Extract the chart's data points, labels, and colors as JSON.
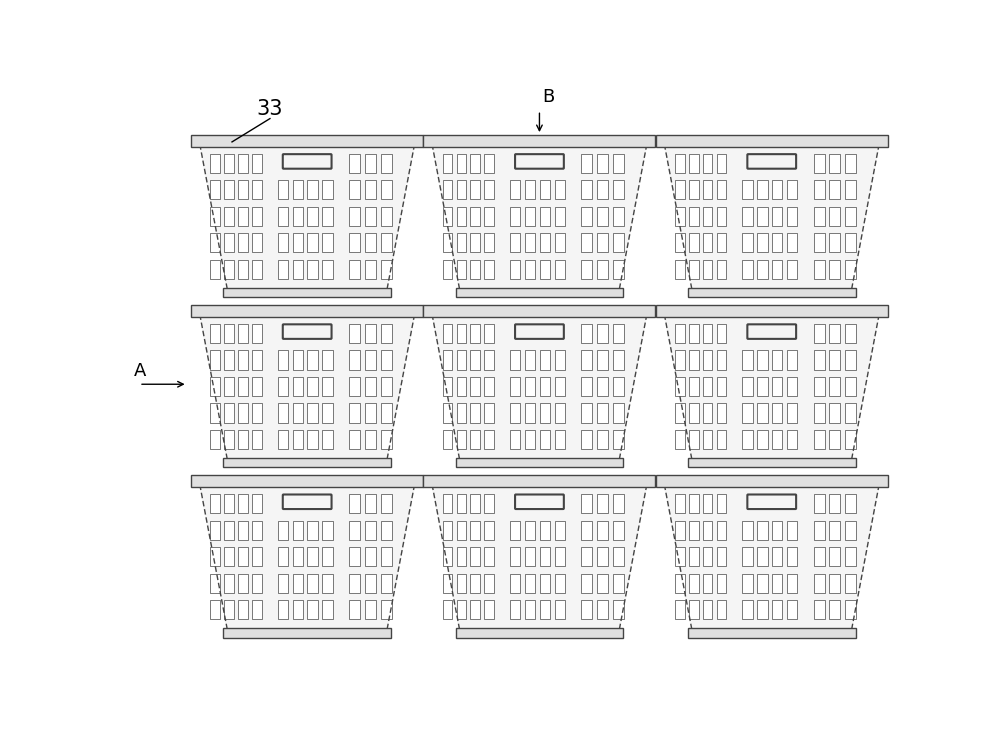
{
  "background_color": "#ffffff",
  "line_color": "#444444",
  "label_33": "33",
  "label_A": "A",
  "label_B": "B",
  "fig_width": 10.0,
  "fig_height": 7.38,
  "basket_face_color": "#f5f5f5",
  "rim_face_color": "#e0e0e0"
}
